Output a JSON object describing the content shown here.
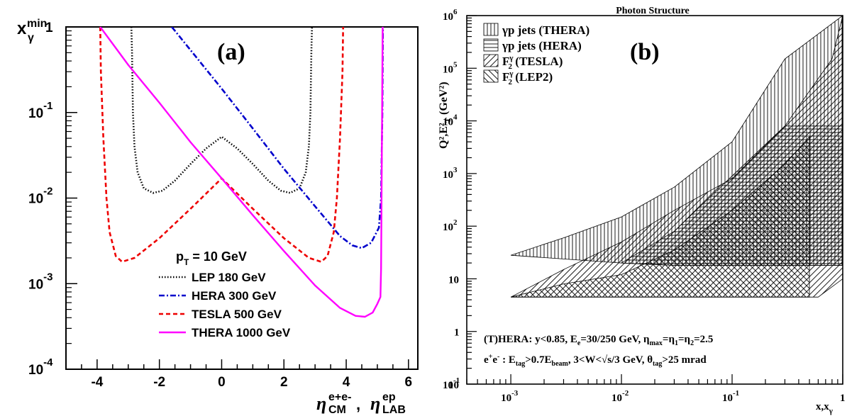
{
  "chart_data": [
    {
      "type": "line",
      "panel_label": "(a)",
      "ylabel": "x",
      "ylabel_sub": "γ",
      "ylabel_sup": "min",
      "xlabel": "η, η",
      "xlabel_parts": {
        "eta1_sup": "e+e-",
        "eta1_sub": "CM",
        "eta2_sup": "ep",
        "eta2_sub": "LAB"
      },
      "xlim": [
        -5,
        6.3
      ],
      "ylim": [
        0.0001,
        1
      ],
      "yscale": "log",
      "xticks": [
        "-4",
        "-2",
        "0",
        "2",
        "4",
        "6"
      ],
      "yticks": [
        {
          "base": "1",
          "exp": ""
        },
        {
          "base": "10",
          "exp": "-1"
        },
        {
          "base": "10",
          "exp": "-2"
        },
        {
          "base": "10",
          "exp": "-3"
        },
        {
          "base": "10",
          "exp": "-4"
        }
      ],
      "legend_title": "p = 10 GeV",
      "legend_title_sub": "T",
      "legend_position": "bottom-center",
      "series": [
        {
          "name": "LEP 180 GeV",
          "color": "#000000",
          "dash": "dotted",
          "points": [
            [
              -2.9,
              1.0
            ],
            [
              -2.88,
              0.5
            ],
            [
              -2.85,
              0.1
            ],
            [
              -2.8,
              0.04
            ],
            [
              -2.7,
              0.02
            ],
            [
              -2.5,
              0.013
            ],
            [
              -2.2,
              0.0115
            ],
            [
              -1.9,
              0.0122
            ],
            [
              -1.5,
              0.016
            ],
            [
              -1.0,
              0.025
            ],
            [
              -0.5,
              0.038
            ],
            [
              0.0,
              0.052
            ],
            [
              0.5,
              0.038
            ],
            [
              1.0,
              0.025
            ],
            [
              1.5,
              0.016
            ],
            [
              1.9,
              0.0122
            ],
            [
              2.2,
              0.0115
            ],
            [
              2.5,
              0.013
            ],
            [
              2.7,
              0.02
            ],
            [
              2.8,
              0.04
            ],
            [
              2.85,
              0.1
            ],
            [
              2.88,
              0.5
            ],
            [
              2.9,
              1.0
            ]
          ]
        },
        {
          "name": "HERA 300 GeV",
          "color": "#0000cc",
          "dash": "dashdot",
          "points": [
            [
              -1.6,
              1.0
            ],
            [
              0.0,
              0.19
            ],
            [
              1.0,
              0.065
            ],
            [
              2.0,
              0.022
            ],
            [
              3.0,
              0.008
            ],
            [
              3.8,
              0.0036
            ],
            [
              4.2,
              0.0028
            ],
            [
              4.5,
              0.0026
            ],
            [
              4.8,
              0.003
            ],
            [
              5.05,
              0.0045
            ],
            [
              5.12,
              0.01
            ],
            [
              5.16,
              0.1
            ],
            [
              5.18,
              1.0
            ]
          ]
        },
        {
          "name": "TESLA 500 GeV",
          "color": "#ee0000",
          "dash": "dashed",
          "points": [
            [
              -3.9,
              1.0
            ],
            [
              -3.88,
              0.3
            ],
            [
              -3.8,
              0.05
            ],
            [
              -3.7,
              0.01
            ],
            [
              -3.6,
              0.004
            ],
            [
              -3.4,
              0.0021
            ],
            [
              -3.2,
              0.0018
            ],
            [
              -2.8,
              0.002
            ],
            [
              -2.0,
              0.0034
            ],
            [
              -1.0,
              0.0075
            ],
            [
              0.0,
              0.017
            ],
            [
              1.0,
              0.0075
            ],
            [
              2.0,
              0.0034
            ],
            [
              2.8,
              0.002
            ],
            [
              3.2,
              0.0018
            ],
            [
              3.4,
              0.0021
            ],
            [
              3.6,
              0.004
            ],
            [
              3.7,
              0.01
            ],
            [
              3.8,
              0.05
            ],
            [
              3.88,
              0.3
            ],
            [
              3.9,
              1.0
            ]
          ]
        },
        {
          "name": "THERA 1000 GeV",
          "color": "#ff00ff",
          "dash": "solid",
          "points": [
            [
              -3.9,
              1.0
            ],
            [
              -3.0,
              0.36
            ],
            [
              -2.0,
              0.13
            ],
            [
              -1.0,
              0.045
            ],
            [
              0.0,
              0.017
            ],
            [
              1.0,
              0.0063
            ],
            [
              2.0,
              0.0024
            ],
            [
              3.0,
              0.00095
            ],
            [
              3.8,
              0.00052
            ],
            [
              4.3,
              0.00042
            ],
            [
              4.6,
              0.00041
            ],
            [
              4.85,
              0.00046
            ],
            [
              5.0,
              0.00058
            ],
            [
              5.1,
              0.0007
            ],
            [
              5.12,
              0.0015
            ],
            [
              5.14,
              0.02
            ],
            [
              5.16,
              0.3
            ],
            [
              5.17,
              1.0
            ]
          ]
        }
      ]
    },
    {
      "type": "area",
      "title": "Photon Structure",
      "panel_label": "(b)",
      "ylabel": "Q²,E²",
      "ylabel_sub": "T",
      "ylabel_unit": "(GeV²)",
      "xlabel": "x,x",
      "xlabel_sub": "γ",
      "xscale": "log",
      "yscale": "log",
      "xlim": [
        0.0004,
        1
      ],
      "ylim": [
        0.1,
        1000000
      ],
      "xticks": [
        {
          "base": "10",
          "exp": "-3"
        },
        {
          "base": "10",
          "exp": "-2"
        },
        {
          "base": "10",
          "exp": "-1"
        },
        {
          "base": "1",
          "exp": ""
        }
      ],
      "yticks": [
        {
          "base": "10",
          "exp": "6"
        },
        {
          "base": "10",
          "exp": "5"
        },
        {
          "base": "10",
          "exp": "4"
        },
        {
          "base": "10",
          "exp": "3"
        },
        {
          "base": "10",
          "exp": "2"
        },
        {
          "base": "10",
          "exp": ""
        },
        {
          "base": "1",
          "exp": ""
        },
        {
          "base": "10",
          "exp": "-1"
        },
        {
          "base": "10",
          "exp": ""
        }
      ],
      "legend_position": "top-left",
      "series": [
        {
          "name": "γp jets (THERA)",
          "hatch": "vertical",
          "polygon": [
            [
              0.001,
              28
            ],
            [
              0.003,
              60
            ],
            [
              0.01,
              150
            ],
            [
              0.03,
              550
            ],
            [
              0.1,
              4000
            ],
            [
              0.3,
              150000
            ],
            [
              1,
              1000000
            ],
            [
              1,
              18
            ],
            [
              0.03,
              18
            ],
            [
              0.01,
              20
            ],
            [
              0.001,
              28
            ]
          ]
        },
        {
          "name": "γp jets (HERA)",
          "hatch": "horizontal",
          "polygon": [
            [
              0.01,
              20
            ],
            [
              0.03,
              80
            ],
            [
              0.1,
              900
            ],
            [
              0.3,
              8000
            ],
            [
              1,
              8000
            ],
            [
              1,
              18
            ],
            [
              0.03,
              18
            ],
            [
              0.01,
              20
            ]
          ]
        },
        {
          "name": "F (TESLA)",
          "name_sub": "2",
          "name_sup": "γ",
          "hatch": "diagonal",
          "polygon": [
            [
              0.001,
              4.5
            ],
            [
              0.003,
              15
            ],
            [
              0.01,
              50
            ],
            [
              0.03,
              200
            ],
            [
              0.1,
              800
            ],
            [
              0.3,
              8000
            ],
            [
              0.8,
              150000
            ],
            [
              1,
              1000000
            ],
            [
              1,
              10
            ],
            [
              0.6,
              4.5
            ],
            [
              0.001,
              4.5
            ]
          ]
        },
        {
          "name": "F (LEP2)",
          "name_sub": "2",
          "name_sup": "γ",
          "hatch": "antidiagonal",
          "polygon": [
            [
              0.001,
              4.5
            ],
            [
              0.003,
              8
            ],
            [
              0.01,
              12
            ],
            [
              0.03,
              35
            ],
            [
              0.1,
              200
            ],
            [
              0.3,
              1500
            ],
            [
              0.5,
              5000
            ],
            [
              0.5,
              4.5
            ],
            [
              0.001,
              4.5
            ]
          ]
        }
      ],
      "annotations": [
        {
          "id": "thera",
          "parts": [
            "(T)HERA: y<0.85, E",
            "e",
            "=30/250 GeV, η",
            "max",
            "=η",
            "1",
            "=η",
            "2",
            "=2.5"
          ]
        },
        {
          "id": "ee",
          "parts": [
            "e",
            "+",
            "e",
            "-",
            " : E",
            "tag",
            ">0.7E",
            "beam",
            ", 3<W<√s/3 GeV, θ",
            "tag",
            ">25 mrad"
          ]
        }
      ]
    }
  ]
}
